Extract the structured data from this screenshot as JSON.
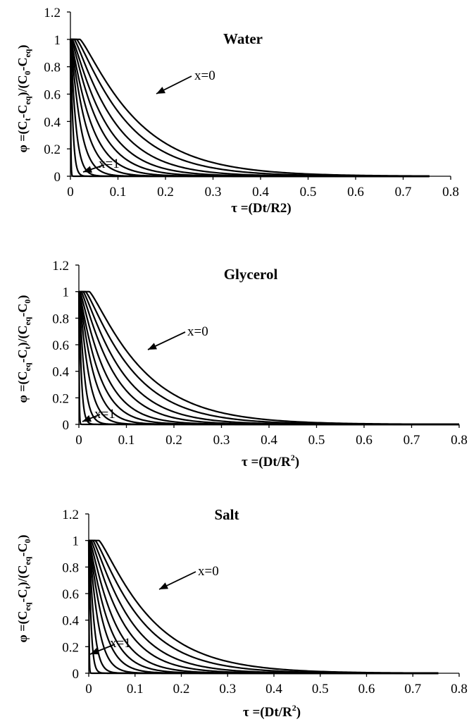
{
  "chart_data": [
    {
      "type": "line",
      "title": "Water",
      "xlabel": "τ =(Dt/R2)",
      "ylabel": "φ =(Ct-Ceq)/(C0-Ceq)",
      "ylabel_parts": {
        "pre": "φ =(C",
        "s1": "t",
        "mid1": "-C",
        "s2": "eq",
        "mid2": ")/(C",
        "s3": "0",
        "mid3": "-C",
        "s4": "eq",
        "post": ")"
      },
      "xlim": [
        0,
        0.8
      ],
      "ylim": [
        0,
        1.2
      ],
      "x_ticks": [
        "0",
        "0.1",
        "0.2",
        "0.3",
        "0.4",
        "0.5",
        "0.6",
        "0.7",
        "0.8"
      ],
      "y_ticks": [
        "0",
        "0.2",
        "0.4",
        "0.6",
        "0.8",
        "1",
        "1.2"
      ],
      "x_end": 0.755,
      "series": [
        {
          "x_position": 0.0,
          "delay": 0.02,
          "k": 9.0
        },
        {
          "x_position": 0.1,
          "delay": 0.013,
          "k": 10.5
        },
        {
          "x_position": 0.2,
          "delay": 0.008,
          "k": 13.0
        },
        {
          "x_position": 0.3,
          "delay": 0.004,
          "k": 16.0
        },
        {
          "x_position": 0.4,
          "delay": 0.002,
          "k": 20.0
        },
        {
          "x_position": 0.5,
          "delay": 0.0,
          "k": 26.0
        },
        {
          "x_position": 0.6,
          "delay": 0.0,
          "k": 36.0
        },
        {
          "x_position": 0.7,
          "delay": 0.0,
          "k": 55.0
        },
        {
          "x_position": 0.8,
          "delay": 0.0,
          "k": 100.0
        },
        {
          "x_position": 0.9,
          "delay": 0.0,
          "k": 220.0
        },
        {
          "x_position": 1.0,
          "delay": 0.0,
          "k": 1500.0
        }
      ],
      "annotations": {
        "top": "x=0",
        "bottom": "x=1"
      }
    },
    {
      "type": "line",
      "title": "Glycerol",
      "xlabel": "τ =(Dt/R2)",
      "xlabel_parts": {
        "pre": "τ =(Dt/R",
        "sup": "2",
        "post": ")"
      },
      "ylabel": "φ =(Ceq-Ct)/(Ceq-C0)",
      "ylabel_parts": {
        "pre": "φ =(C",
        "s1": "eq",
        "mid1": "-C",
        "s2": "t",
        "mid2": ")/(C",
        "s3": "eq",
        "mid3": "-C",
        "s4": "0",
        "post": ")"
      },
      "xlim": [
        0,
        0.8
      ],
      "ylim": [
        0,
        1.2
      ],
      "x_ticks": [
        "0",
        "0.1",
        "0.2",
        "0.3",
        "0.4",
        "0.5",
        "0.6",
        "0.7",
        "0.8"
      ],
      "y_ticks": [
        "0",
        "0.2",
        "0.4",
        "0.6",
        "0.8",
        "1",
        "1.2"
      ],
      "x_end": 0.8,
      "series": [
        {
          "x_position": 0.0,
          "delay": 0.022,
          "k": 9.5
        },
        {
          "x_position": 0.1,
          "delay": 0.014,
          "k": 11.0
        },
        {
          "x_position": 0.2,
          "delay": 0.009,
          "k": 13.5
        },
        {
          "x_position": 0.3,
          "delay": 0.005,
          "k": 16.5
        },
        {
          "x_position": 0.4,
          "delay": 0.002,
          "k": 21.0
        },
        {
          "x_position": 0.5,
          "delay": 0.0,
          "k": 27.0
        },
        {
          "x_position": 0.6,
          "delay": 0.0,
          "k": 37.0
        },
        {
          "x_position": 0.7,
          "delay": 0.0,
          "k": 56.0
        },
        {
          "x_position": 0.8,
          "delay": 0.0,
          "k": 100.0
        },
        {
          "x_position": 0.9,
          "delay": 0.0,
          "k": 220.0
        },
        {
          "x_position": 1.0,
          "delay": 0.0,
          "k": 1500.0
        }
      ],
      "annotations": {
        "top": "x=0",
        "bottom": "x=1"
      }
    },
    {
      "type": "line",
      "title": "Salt",
      "xlabel": "τ =(Dt/R2)",
      "xlabel_parts": {
        "pre": "τ =(Dt/R",
        "sup": "2",
        "post": ")"
      },
      "ylabel": "φ =(Ceq-Ct)/(Ceq-C0)",
      "ylabel_parts": {
        "pre": "φ =(C",
        "s1": "eq",
        "mid1": "-C",
        "s2": "t",
        "mid2": ")/(C",
        "s3": "eq",
        "mid3": "-C",
        "s4": "0",
        "post": ")"
      },
      "xlim": [
        0,
        0.8
      ],
      "ylim": [
        0,
        1.2
      ],
      "x_ticks": [
        "0",
        "0.1",
        "0.2",
        "0.3",
        "0.4",
        "0.5",
        "0.6",
        "0.7",
        "0.8"
      ],
      "y_ticks": [
        "0",
        "0.2",
        "0.4",
        "0.6",
        "0.8",
        "1",
        "1.2"
      ],
      "x_end": 0.755,
      "series": [
        {
          "x_position": 0.0,
          "delay": 0.022,
          "k": 9.5
        },
        {
          "x_position": 0.1,
          "delay": 0.014,
          "k": 11.0
        },
        {
          "x_position": 0.2,
          "delay": 0.009,
          "k": 13.5
        },
        {
          "x_position": 0.3,
          "delay": 0.005,
          "k": 16.5
        },
        {
          "x_position": 0.4,
          "delay": 0.002,
          "k": 21.0
        },
        {
          "x_position": 0.5,
          "delay": 0.0,
          "k": 27.0
        },
        {
          "x_position": 0.6,
          "delay": 0.0,
          "k": 37.0
        },
        {
          "x_position": 0.7,
          "delay": 0.0,
          "k": 56.0
        },
        {
          "x_position": 0.8,
          "delay": 0.0,
          "k": 100.0
        },
        {
          "x_position": 0.9,
          "delay": 0.0,
          "k": 220.0
        },
        {
          "x_position": 1.0,
          "delay": 0.0,
          "k": 1500.0
        }
      ],
      "annotations": {
        "top": "x=0",
        "bottom": "x=1"
      }
    }
  ]
}
